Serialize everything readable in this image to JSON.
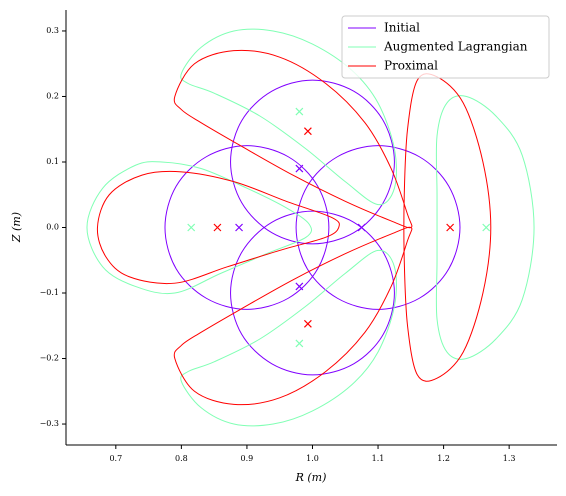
{
  "chart_data": {
    "type": "curves",
    "xlabel": "R (m)",
    "ylabel": "Z (m)",
    "xlim": [
      0.624,
      1.373
    ],
    "ylim": [
      -0.332,
      0.332
    ],
    "xticks": [
      0.7,
      0.8,
      0.9,
      {
        "value": 1.0,
        "label": "1.0"
      },
      1.1,
      1.2,
      1.3
    ],
    "yticks": [
      {
        "value": -0.3,
        "label": "−0.3"
      },
      {
        "value": -0.2,
        "label": "−0.2"
      },
      {
        "value": -0.1,
        "label": "−0.1"
      },
      {
        "value": 0.0,
        "label": "0.0"
      },
      0.1,
      0.2,
      0.3
    ],
    "legend": "upper right",
    "series": [
      {
        "name": "Initial",
        "color": "#8000ff",
        "curves": [
          {
            "x": [
              1.125,
              1.108,
              1.063,
              1.0,
              0.938,
              0.892,
              0.875,
              0.892,
              0.938,
              1.0,
              1.063,
              1.108
            ],
            "y": [
              0.1,
              0.163,
              0.208,
              0.225,
              0.208,
              0.163,
              0.1,
              0.038,
              -0.008,
              -0.025,
              -0.008,
              0.038
            ]
          },
          {
            "x": [
              1.025,
              1.008,
              0.963,
              0.9,
              0.838,
              0.792,
              0.775,
              0.792,
              0.838,
              0.9,
              0.963,
              1.008
            ],
            "y": [
              0,
              0.063,
              0.108,
              0.125,
              0.108,
              0.063,
              0,
              -0.063,
              -0.108,
              -0.125,
              -0.108,
              -0.063
            ]
          },
          {
            "x": [
              1.225,
              1.208,
              1.163,
              1.1,
              1.038,
              0.992,
              0.975,
              0.992,
              1.038,
              1.1,
              1.163,
              1.208
            ],
            "y": [
              0,
              0.063,
              0.108,
              0.125,
              0.108,
              0.063,
              0,
              -0.063,
              -0.108,
              -0.125,
              -0.108,
              -0.063
            ]
          },
          {
            "x": [
              1.125,
              1.108,
              1.063,
              1.0,
              0.938,
              0.892,
              0.875,
              0.892,
              0.938,
              1.0,
              1.063,
              1.108
            ],
            "y": [
              -0.1,
              -0.038,
              0.008,
              0.025,
              0.008,
              -0.038,
              -0.1,
              -0.163,
              -0.208,
              -0.225,
              -0.208,
              -0.163
            ]
          }
        ],
        "markers": {
          "x": [
            0.888,
            0.98,
            0.98,
            1.075
          ],
          "y": [
            0,
            0.09,
            -0.09,
            0
          ]
        }
      },
      {
        "name": "Augmented Lagrangian",
        "color": "#80ffb4",
        "curves": [
          {
            "x": [
              0.656,
              0.68,
              0.73,
              0.77,
              0.83,
              0.9,
              0.96,
              0.995,
              0.99,
              0.93,
              0.86,
              0.79,
              0.73,
              0.68
            ],
            "y": [
              0,
              0.06,
              0.095,
              0.1,
              0.09,
              0.06,
              0.03,
              0.005,
              -0.015,
              -0.04,
              -0.07,
              -0.1,
              -0.09,
              -0.06
            ]
          },
          {
            "x": [
              0.8,
              0.83,
              0.88,
              0.94,
              1.0,
              1.06,
              1.1,
              1.125,
              1.125,
              1.1,
              1.05,
              0.99,
              0.92,
              0.85,
              0.81
            ],
            "y": [
              0.235,
              0.275,
              0.3,
              0.3,
              0.28,
              0.24,
              0.19,
              0.12,
              0.06,
              0.035,
              0.07,
              0.12,
              0.17,
              0.205,
              0.22
            ]
          },
          {
            "x": [
              0.8,
              0.83,
              0.88,
              0.94,
              1.0,
              1.06,
              1.1,
              1.125,
              1.125,
              1.1,
              1.05,
              0.99,
              0.92,
              0.85,
              0.81
            ],
            "y": [
              -0.235,
              -0.275,
              -0.3,
              -0.3,
              -0.28,
              -0.24,
              -0.19,
              -0.12,
              -0.06,
              -0.035,
              -0.07,
              -0.12,
              -0.17,
              -0.205,
              -0.22
            ]
          },
          {
            "x": [
              1.205,
              1.235,
              1.28,
              1.32,
              1.338,
              1.32,
              1.28,
              1.235,
              1.205,
              1.19,
              1.19,
              1.19,
              1.19
            ],
            "y": [
              0.19,
              0.2,
              0.17,
              0.11,
              0.0,
              -0.11,
              -0.17,
              -0.2,
              -0.19,
              -0.14,
              -0.05,
              0.05,
              0.14
            ]
          }
        ],
        "markers": {
          "x": [
            0.815,
            0.98,
            0.98,
            1.265
          ],
          "y": [
            0,
            0.177,
            -0.177,
            0
          ]
        }
      },
      {
        "name": "Proximal",
        "color": "#ff0000",
        "curves": [
          {
            "x": [
              0.672,
              0.69,
              0.74,
              0.8,
              0.88,
              0.96,
              1.03,
              1.04,
              1.02,
              0.95,
              0.87,
              0.79,
              0.72,
              0.685
            ],
            "y": [
              0,
              0.05,
              0.08,
              0.085,
              0.07,
              0.04,
              0.015,
              0.0,
              -0.015,
              -0.035,
              -0.06,
              -0.085,
              -0.075,
              -0.045
            ]
          },
          {
            "x": [
              0.79,
              0.82,
              0.88,
              0.95,
              1.02,
              1.08,
              1.12,
              1.145,
              1.15,
              1.12,
              1.05,
              0.97,
              0.89,
              0.83,
              0.8
            ],
            "y": [
              0.2,
              0.25,
              0.27,
              0.26,
              0.22,
              0.16,
              0.09,
              0.02,
              0.0,
              0.01,
              0.04,
              0.08,
              0.125,
              0.16,
              0.18
            ]
          },
          {
            "x": [
              0.79,
              0.82,
              0.88,
              0.95,
              1.02,
              1.08,
              1.12,
              1.145,
              1.15,
              1.12,
              1.05,
              0.97,
              0.89,
              0.83,
              0.8
            ],
            "y": [
              -0.2,
              -0.25,
              -0.27,
              -0.26,
              -0.22,
              -0.16,
              -0.09,
              -0.02,
              0.0,
              -0.01,
              -0.04,
              -0.08,
              -0.125,
              -0.16,
              -0.18
            ]
          },
          {
            "x": [
              1.16,
              1.19,
              1.23,
              1.26,
              1.272,
              1.26,
              1.23,
              1.19,
              1.16,
              1.145,
              1.14,
              1.14,
              1.145
            ],
            "y": [
              0.225,
              0.23,
              0.19,
              0.1,
              0,
              -0.1,
              -0.19,
              -0.23,
              -0.225,
              -0.15,
              -0.05,
              0.05,
              0.15
            ]
          }
        ],
        "markers": {
          "x": [
            0.855,
            0.993,
            0.993,
            1.21
          ],
          "y": [
            0,
            0.147,
            -0.147,
            0
          ]
        }
      }
    ]
  }
}
